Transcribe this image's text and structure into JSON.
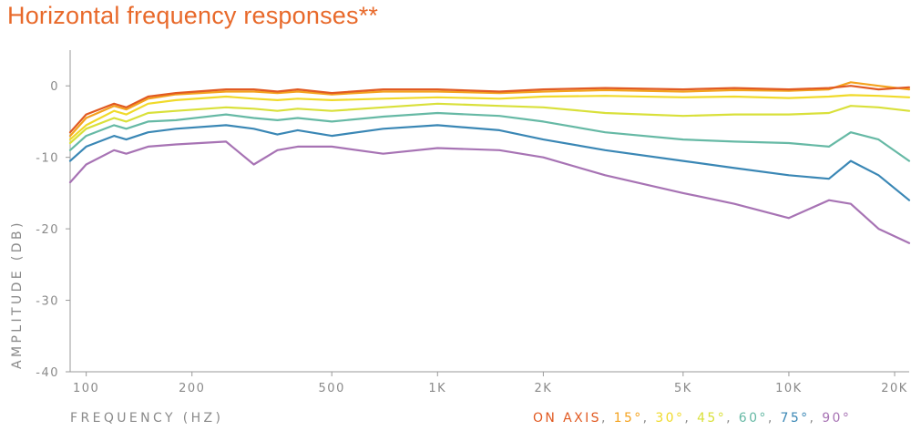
{
  "chart_data": {
    "type": "line",
    "title": "Horizontal frequency responses**",
    "xlabel": "FREQUENCY (HZ)",
    "ylabel": "AMPLITUDE (DB)",
    "x_scale": "log",
    "xlim": [
      90,
      22000
    ],
    "ylim": [
      -40,
      5
    ],
    "x_ticks": [
      100,
      200,
      500,
      1000,
      2000,
      5000,
      10000,
      20000
    ],
    "x_tick_labels": [
      "100",
      "200",
      "500",
      "1K",
      "2K",
      "5K",
      "10K",
      "20K"
    ],
    "y_ticks": [
      0,
      -10,
      -20,
      -30,
      -40
    ],
    "y_tick_labels": [
      "0",
      "-10",
      "-20",
      "-30",
      "-40"
    ],
    "grid": false,
    "legend_position": "bottom",
    "x": [
      90,
      100,
      120,
      130,
      150,
      180,
      250,
      300,
      350,
      400,
      500,
      700,
      1000,
      1500,
      2000,
      3000,
      5000,
      7000,
      10000,
      13000,
      15000,
      18000,
      22000
    ],
    "series": [
      {
        "name": "ON AXIS",
        "color": "#e15a22",
        "values": [
          -6.5,
          -4,
          -2.5,
          -3,
          -1.5,
          -1,
          -0.5,
          -0.5,
          -0.8,
          -0.5,
          -1,
          -0.5,
          -0.5,
          -0.8,
          -0.5,
          -0.3,
          -0.5,
          -0.3,
          -0.5,
          -0.3,
          0,
          -0.5,
          -0.2
        ]
      },
      {
        "name": "15°",
        "color": "#f4a21e",
        "values": [
          -7,
          -4.5,
          -2.8,
          -3.3,
          -1.8,
          -1.2,
          -0.8,
          -0.8,
          -1,
          -0.8,
          -1.2,
          -0.8,
          -0.8,
          -1,
          -0.8,
          -0.6,
          -0.8,
          -0.6,
          -0.7,
          -0.5,
          0.5,
          0,
          -0.5
        ]
      },
      {
        "name": "30°",
        "color": "#f0da2a",
        "values": [
          -7.5,
          -5.5,
          -3.5,
          -4,
          -2.5,
          -2,
          -1.5,
          -1.8,
          -2,
          -1.8,
          -2,
          -1.8,
          -1.6,
          -1.8,
          -1.5,
          -1.4,
          -1.6,
          -1.5,
          -1.7,
          -1.5,
          -1.3,
          -1.4,
          -1.6
        ]
      },
      {
        "name": "45°",
        "color": "#d9e03a",
        "values": [
          -8,
          -6,
          -4.5,
          -5,
          -3.8,
          -3.5,
          -3,
          -3.2,
          -3.5,
          -3.2,
          -3.5,
          -3,
          -2.5,
          -2.8,
          -3,
          -3.8,
          -4.2,
          -4,
          -4,
          -3.8,
          -2.8,
          -3,
          -3.5
        ]
      },
      {
        "name": "60°",
        "color": "#66b9a5",
        "values": [
          -9,
          -7,
          -5.5,
          -6,
          -5,
          -4.8,
          -4,
          -4.5,
          -4.8,
          -4.5,
          -5,
          -4.3,
          -3.8,
          -4.2,
          -5,
          -6.5,
          -7.5,
          -7.8,
          -8,
          -8.5,
          -6.5,
          -7.5,
          -10.5
        ]
      },
      {
        "name": "75°",
        "color": "#3a87b5",
        "values": [
          -10.5,
          -8.5,
          -7,
          -7.5,
          -6.5,
          -6,
          -5.5,
          -6,
          -6.8,
          -6.2,
          -7,
          -6,
          -5.5,
          -6.2,
          -7.5,
          -9,
          -10.5,
          -11.5,
          -12.5,
          -13,
          -10.5,
          -12.5,
          -16
        ]
      },
      {
        "name": "90°",
        "color": "#a773b4",
        "values": [
          -13.5,
          -11,
          -9,
          -9.5,
          -8.5,
          -8.2,
          -7.8,
          -11,
          -9,
          -8.5,
          -8.5,
          -9.5,
          -8.7,
          -9,
          -10,
          -12.5,
          -15,
          -16.5,
          -18.5,
          -16,
          -16.5,
          -20,
          -22
        ]
      }
    ]
  }
}
